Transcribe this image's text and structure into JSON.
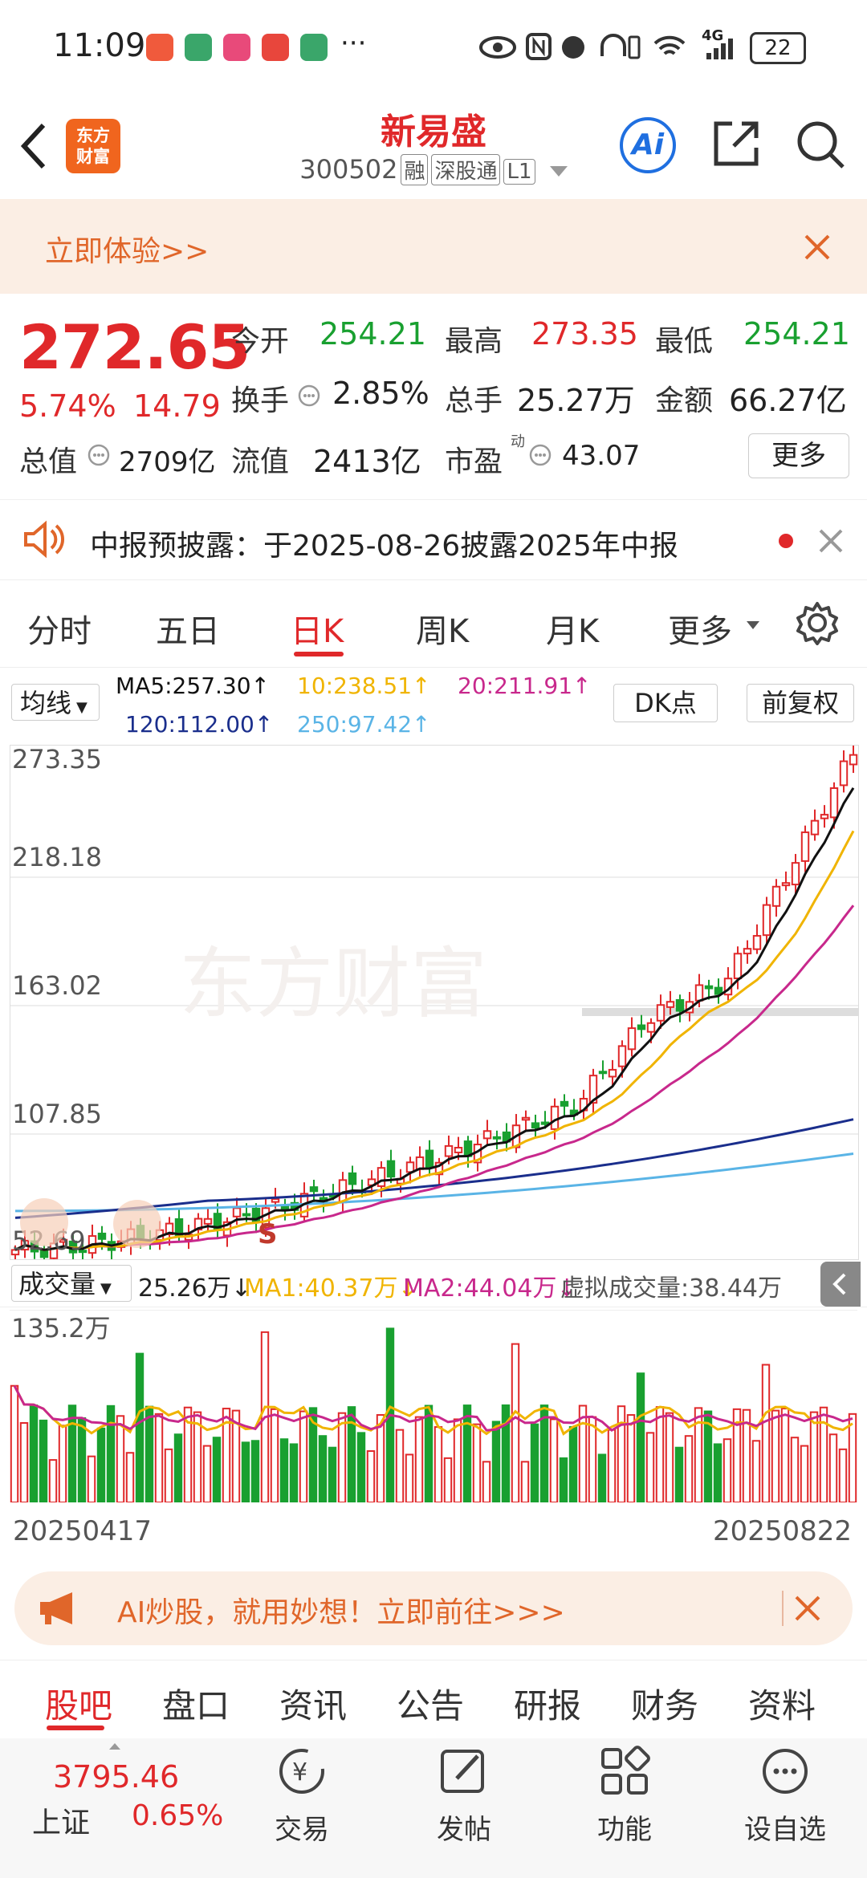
{
  "status_bar": {
    "time": "11:09",
    "network": "4G",
    "battery": "22",
    "dots": "···"
  },
  "header": {
    "logo_line1": "东方",
    "logo_line2": "财富",
    "stock_name": "新易盛",
    "stock_code": "300502",
    "tag1": "融",
    "tag2": "深股通",
    "tag3": "L1",
    "ai_label": "Ai"
  },
  "promo": {
    "text": "立即体验>>"
  },
  "quote": {
    "price": "272.65",
    "change_pct": "5.74%",
    "change_abs": "14.79",
    "open_label": "今开",
    "open": "254.21",
    "high_label": "最高",
    "high": "273.35",
    "low_label": "最低",
    "low": "254.21",
    "turnover_label": "换手",
    "turnover": "2.85%",
    "volume_label": "总手",
    "volume": "25.27万",
    "amount_label": "金额",
    "amount": "66.27亿",
    "mcap_label": "总值",
    "mcap": "2709亿",
    "float_label": "流值",
    "float_cap": "2413亿",
    "pe_label": "市盈",
    "pe_sup": "动",
    "pe": "43.07",
    "more_button": "更多"
  },
  "notice": {
    "text": "中报预披露：于2025-08-26披露2025年中报"
  },
  "ktabs": [
    "分时",
    "五日",
    "日K",
    "周K",
    "月K",
    "更多"
  ],
  "ktab_active": 2,
  "ma_bar": {
    "selector": "均线",
    "ma5": "MA5:257.30↑",
    "ma10": "10:238.51↑",
    "ma20": "20:211.91↑",
    "ma120": "120:112.00↑",
    "ma250": "250:97.42↑",
    "dk_button": "DK点",
    "fq_button": "前复权"
  },
  "chart": {
    "y_labels": [
      "273.35",
      "218.18",
      "163.02",
      "107.85",
      "52.69"
    ],
    "watermark": "东方财富",
    "signal": "S"
  },
  "volume": {
    "selector": "成交量",
    "current": "25.26万↓",
    "ma1": "MA1:40.37万↓",
    "ma2": "MA2:44.04万↓",
    "virtual": "虚拟成交量:38.44万",
    "max_label": "135.2万",
    "start_date": "20250417",
    "end_date": "20250822"
  },
  "ai_banner": {
    "text": "AI炒股，就用妙想！立即前往>>>"
  },
  "bottom_tabs": [
    "股吧",
    "盘口",
    "资讯",
    "公告",
    "研报",
    "财务",
    "资料"
  ],
  "index": {
    "value": "3795.46",
    "name": "上证",
    "change": "0.65%"
  },
  "nav": [
    "交易",
    "发帖",
    "功能",
    "设自选"
  ],
  "colors": {
    "up": "#e0282a",
    "down": "#19a030",
    "ma5": "#111111",
    "ma10": "#f0b400",
    "ma20": "#c8288c",
    "ma120": "#1a2e8c",
    "ma250": "#5ab4e6"
  }
}
